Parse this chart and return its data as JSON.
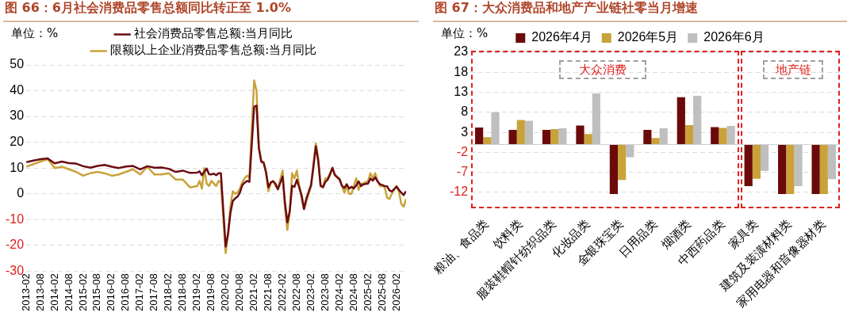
{
  "chart_data": [
    {
      "type": "line",
      "title": "图 66：6月社会消费品零售总额同比转正至 1.0%",
      "ylabel": "单位：%",
      "legend": "top",
      "grid": "y",
      "line_style": "solid",
      "marker": "none",
      "x": [
        "2013-02",
        "2013-05",
        "2013-08",
        "2013-11",
        "2014-02",
        "2014-05",
        "2014-08",
        "2014-11",
        "2015-02",
        "2015-05",
        "2015-08",
        "2015-11",
        "2016-02",
        "2016-05",
        "2016-08",
        "2016-11",
        "2017-02",
        "2017-05",
        "2017-08",
        "2017-11",
        "2018-02",
        "2018-05",
        "2018-08",
        "2018-11",
        "2019-02",
        "2019-03",
        "2019-04",
        "2019-05",
        "2019-06",
        "2019-07",
        "2019-08",
        "2019-09",
        "2019-10",
        "2019-11",
        "2019-12",
        "2020-02",
        "2020-03",
        "2020-04",
        "2020-05",
        "2020-06",
        "2020-07",
        "2020-08",
        "2020-09",
        "2020-10",
        "2020-11",
        "2020-12",
        "2021-02",
        "2021-03",
        "2021-04",
        "2021-05",
        "2021-06",
        "2021-07",
        "2021-08",
        "2021-09",
        "2021-10",
        "2021-11",
        "2021-12",
        "2022-02",
        "2022-03",
        "2022-04",
        "2022-05",
        "2022-06",
        "2022-07",
        "2022-08",
        "2022-09",
        "2022-10",
        "2022-11",
        "2022-12",
        "2023-02",
        "2023-03",
        "2023-04",
        "2023-05",
        "2023-06",
        "2023-07",
        "2023-08",
        "2023-09",
        "2023-10",
        "2023-11",
        "2023-12",
        "2024-02",
        "2024-03",
        "2024-04",
        "2024-05",
        "2024-06",
        "2024-07",
        "2024-08",
        "2024-09",
        "2024-10",
        "2024-11",
        "2024-12",
        "2025-02",
        "2025-03",
        "2025-04",
        "2025-05",
        "2025-06",
        "2025-07",
        "2025-08",
        "2025-09",
        "2025-10",
        "2025-11",
        "2025-12",
        "2026-02",
        "2026-03",
        "2026-04",
        "2026-05",
        "2026-06"
      ],
      "series": [
        {
          "name": "社会消费品零售总额:当月同比",
          "color": "#6b0c12",
          "values": [
            12.3,
            12.9,
            13.4,
            13.7,
            11.8,
            12.5,
            11.9,
            11.7,
            10.7,
            10.1,
            10.8,
            11.2,
            10.5,
            10.0,
            10.6,
            10.8,
            9.5,
            10.7,
            10.1,
            10.2,
            9.7,
            8.5,
            9.0,
            8.1,
            8.2,
            8.7,
            7.2,
            8.6,
            9.8,
            7.6,
            7.5,
            7.8,
            7.2,
            8.0,
            8.0,
            -20.5,
            -15.8,
            -7.5,
            -2.8,
            -1.8,
            -1.1,
            0.5,
            3.3,
            4.3,
            5.0,
            4.6,
            33.8,
            34.2,
            17.7,
            12.4,
            12.1,
            8.5,
            2.5,
            4.4,
            4.9,
            3.9,
            1.7,
            6.7,
            -3.5,
            -11.1,
            -6.7,
            3.1,
            2.7,
            5.4,
            2.5,
            -0.5,
            -5.9,
            -1.8,
            3.5,
            10.6,
            18.4,
            12.7,
            3.1,
            2.5,
            4.6,
            5.5,
            7.6,
            10.1,
            7.4,
            5.5,
            3.1,
            2.3,
            3.7,
            2.0,
            2.7,
            2.1,
            3.2,
            4.8,
            3.0,
            3.7,
            4.0,
            5.9,
            5.1,
            6.4,
            4.8,
            3.7,
            3.4,
            3.0,
            2.9,
            1.3,
            0.9,
            2.8,
            1.5,
            0.5,
            -0.5,
            1.0
          ]
        },
        {
          "name": "限额以上企业消费品零售总额:当月同比",
          "color": "#c9a23a",
          "values": [
            10.5,
            11.5,
            12.5,
            13.5,
            10.0,
            10.5,
            9.5,
            8.5,
            7.0,
            8.0,
            8.5,
            8.0,
            7.0,
            7.5,
            8.5,
            9.5,
            7.5,
            10.5,
            7.5,
            7.5,
            8.0,
            5.5,
            5.5,
            2.5,
            3.0,
            5.0,
            2.0,
            10.0,
            4.0,
            3.0,
            5.0,
            4.0,
            3.0,
            5.0,
            4.5,
            -23.0,
            -15.0,
            -5.0,
            1.0,
            0.0,
            0.5,
            2.0,
            4.5,
            6.0,
            7.0,
            6.5,
            44.0,
            40.0,
            18.0,
            13.0,
            12.0,
            8.0,
            1.0,
            4.0,
            5.0,
            3.0,
            2.0,
            9.0,
            -6.0,
            -14.0,
            -7.0,
            8.0,
            6.0,
            9.0,
            3.0,
            -2.0,
            -6.0,
            -3.0,
            3.0,
            12.0,
            19.5,
            14.0,
            3.0,
            3.0,
            6.0,
            6.0,
            8.0,
            10.0,
            7.0,
            6.0,
            3.0,
            0.5,
            3.0,
            0.0,
            0.0,
            3.0,
            6.0,
            1.5,
            4.0,
            4.0,
            5.0,
            8.0,
            6.0,
            8.0,
            5.0,
            3.0,
            3.0,
            2.5,
            -1.5,
            -2.0,
            0.0,
            3.0,
            1.0,
            -4.0,
            -5.0,
            -2.0
          ]
        }
      ],
      "xlim": [
        "2013-02",
        "2026-06"
      ],
      "xticks": [
        "2013-02",
        "2013-08",
        "2014-02",
        "2014-08",
        "2015-02",
        "2015-08",
        "2016-02",
        "2016-08",
        "2017-02",
        "2017-08",
        "2018-02",
        "2018-08",
        "2019-02",
        "2019-08",
        "2020-02",
        "2020-08",
        "2021-02",
        "2021-08",
        "2022-02",
        "2022-08",
        "2023-02",
        "2023-08",
        "2024-02",
        "2024-08",
        "2025-02",
        "2025-08",
        "2026-02"
      ],
      "ylim": [
        -30,
        50
      ],
      "yticks": [
        -30,
        -20,
        -10,
        0,
        10,
        20,
        30,
        40,
        50
      ]
    },
    {
      "type": "bar",
      "title": "图 67：大众消费品和地产产业链社零当月增速",
      "ylabel": "单位：%",
      "legend": "top",
      "grid": "y",
      "annotations": [
        "大众消费",
        "地产链"
      ],
      "categories": [
        "粮油、食品类",
        "饮料类",
        "服装鞋帽针纺织品类",
        "化妆品类",
        "金银珠宝类",
        "日用品类",
        "烟酒类",
        "中西药品类",
        "家具类",
        "建筑及装潢材料类",
        "家用电器和音像器材类"
      ],
      "series": [
        {
          "name": "2026年4月",
          "color": "#6b0a0a",
          "values": [
            4.2,
            3.6,
            3.6,
            4.7,
            -12.4,
            3.6,
            11.8,
            4.3,
            -10.4,
            -12.4,
            -12.4
          ]
        },
        {
          "name": "2026年5月",
          "color": "#c9a23a",
          "values": [
            1.8,
            6.1,
            3.8,
            2.6,
            -8.9,
            1.6,
            4.8,
            4.1,
            -8.6,
            -12.4,
            -12.4
          ]
        },
        {
          "name": "2026年6月",
          "color": "#bfbfbf",
          "values": [
            8.0,
            5.9,
            4.0,
            12.7,
            -3.2,
            4.0,
            12.1,
            4.6,
            -6.6,
            -10.4,
            -8.7
          ]
        }
      ],
      "ylim": [
        -16,
        23
      ],
      "yticks": [
        -12,
        -7,
        -2,
        3,
        8,
        13,
        18,
        23
      ]
    }
  ]
}
